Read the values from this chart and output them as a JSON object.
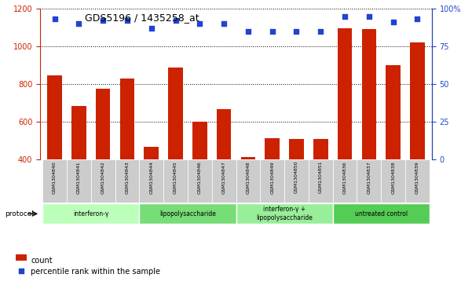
{
  "title": "GDS5196 / 1435258_at",
  "samples": [
    "GSM1304840",
    "GSM1304841",
    "GSM1304842",
    "GSM1304843",
    "GSM1304844",
    "GSM1304845",
    "GSM1304846",
    "GSM1304847",
    "GSM1304848",
    "GSM1304849",
    "GSM1304850",
    "GSM1304851",
    "GSM1304836",
    "GSM1304837",
    "GSM1304838",
    "GSM1304839"
  ],
  "counts": [
    848,
    683,
    775,
    830,
    468,
    888,
    600,
    668,
    415,
    515,
    508,
    510,
    1095,
    1090,
    900,
    1020
  ],
  "percentiles": [
    93,
    90,
    92,
    92,
    87,
    92,
    90,
    90,
    85,
    85,
    85,
    85,
    95,
    95,
    91,
    93
  ],
  "groups": [
    {
      "label": "interferon-γ",
      "start": 0,
      "end": 4,
      "color": "#bbffbb"
    },
    {
      "label": "lipopolysaccharide",
      "start": 4,
      "end": 8,
      "color": "#77dd77"
    },
    {
      "label": "interferon-γ +\nlipopolysaccharide",
      "start": 8,
      "end": 12,
      "color": "#99ee99"
    },
    {
      "label": "untreated control",
      "start": 12,
      "end": 16,
      "color": "#55cc55"
    }
  ],
  "ylim_left": [
    400,
    1200
  ],
  "ylim_right": [
    0,
    100
  ],
  "yticks_left": [
    400,
    600,
    800,
    1000,
    1200
  ],
  "yticks_right": [
    0,
    25,
    50,
    75,
    100
  ],
  "bar_color": "#cc2200",
  "dot_color": "#2244cc",
  "background_color": "#ffffff",
  "protocol_label": "protocol",
  "legend_count": "count",
  "legend_percentile": "percentile rank within the sample"
}
